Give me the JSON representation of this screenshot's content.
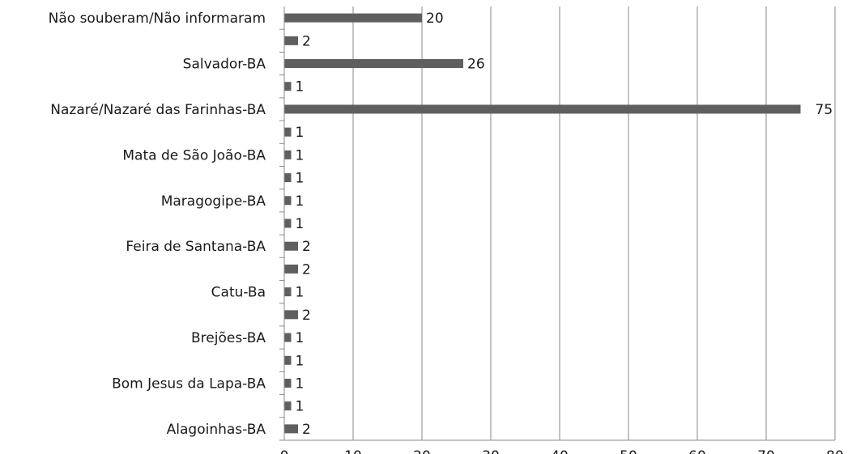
{
  "chart_data": {
    "type": "bar",
    "orientation": "horizontal",
    "categories": [
      "Alagoinhas-BA",
      "",
      "Bom Jesus da Lapa-BA",
      "",
      "Brejões-BA",
      "",
      "Catu-Ba",
      "",
      "Feira de Santana-BA",
      "",
      "Maragogipe-BA",
      "",
      "Mata de São João-BA",
      "",
      "Nazaré/Nazaré das Farinhas-BA",
      "",
      "Salvador-BA",
      "",
      "Não souberam/Não informaram"
    ],
    "values": [
      2,
      1,
      1,
      1,
      1,
      2,
      1,
      2,
      2,
      1,
      1,
      1,
      1,
      1,
      75,
      1,
      26,
      2,
      20
    ],
    "xlim": [
      0,
      80
    ],
    "xticks": [
      0,
      10,
      20,
      30,
      40,
      50,
      60,
      70,
      80
    ],
    "grid": true,
    "bar_color": "#5f5f5f",
    "title": "",
    "xlabel": "",
    "ylabel": ""
  }
}
